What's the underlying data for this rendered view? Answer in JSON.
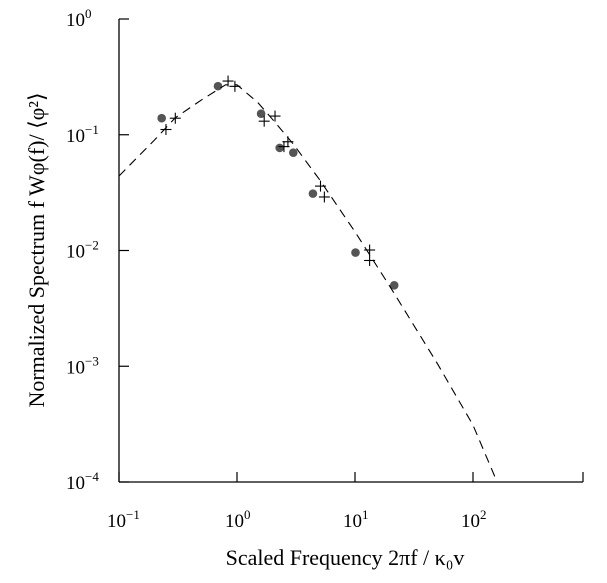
{
  "chart_data": {
    "type": "scatter",
    "title": "",
    "xlabel": "Scaled Frequency 2πf / κ₀v",
    "ylabel": "Normalized Spectrum   f Wφ(f)/ ⟨φ²⟩",
    "x_scale": "log",
    "y_scale": "log",
    "xlim": [
      0.1,
      800
    ],
    "ylim": [
      0.0001,
      1
    ],
    "grid": false,
    "legend": "none",
    "x_ticks": [
      {
        "value": 0.1,
        "base": "10",
        "exp": "−1"
      },
      {
        "value": 1,
        "base": "10",
        "exp": "0"
      },
      {
        "value": 10,
        "base": "10",
        "exp": "1"
      },
      {
        "value": 100,
        "base": "10",
        "exp": "2"
      }
    ],
    "y_ticks": [
      {
        "value": 1,
        "base": "10",
        "exp": "0"
      },
      {
        "value": 0.1,
        "base": "10",
        "exp": "−1"
      },
      {
        "value": 0.01,
        "base": "10",
        "exp": "−2"
      },
      {
        "value": 0.001,
        "base": "10",
        "exp": "−3"
      },
      {
        "value": 0.0001,
        "base": "10",
        "exp": "−4"
      }
    ],
    "series": [
      {
        "marker": "circle",
        "color": "#555555",
        "x": [
          0.23,
          0.69,
          1.6,
          2.3,
          3.0,
          4.4,
          10.1,
          21.5
        ],
        "y": [
          0.139,
          0.263,
          0.152,
          0.077,
          0.07,
          0.031,
          0.0096,
          0.005
        ]
      },
      {
        "marker": "plus",
        "color": "#000000",
        "x": [
          0.25,
          0.3,
          0.84,
          0.96,
          1.7,
          2.1,
          2.5,
          2.7,
          5.1,
          5.5,
          13.3,
          13.3
        ],
        "y": [
          0.111,
          0.139,
          0.291,
          0.262,
          0.131,
          0.145,
          0.079,
          0.087,
          0.036,
          0.029,
          0.0101,
          0.0082
        ]
      },
      {
        "line": "dashed",
        "color": "#000000",
        "x": [
          0.1,
          0.2,
          0.3,
          0.5,
          0.8,
          1.0,
          1.5,
          2.0,
          3.0,
          5.0,
          10,
          20,
          50,
          100,
          160
        ],
        "y": [
          0.044,
          0.09,
          0.14,
          0.2,
          0.27,
          0.27,
          0.19,
          0.136,
          0.083,
          0.041,
          0.0145,
          0.0048,
          0.00105,
          0.00031,
          0.0001
        ]
      }
    ]
  }
}
